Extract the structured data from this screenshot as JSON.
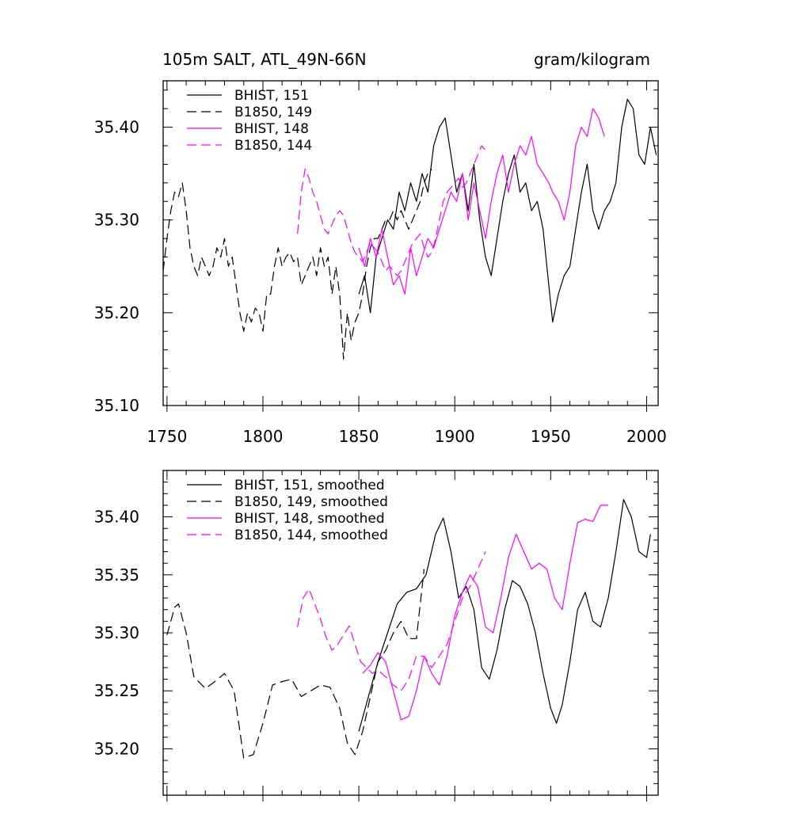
{
  "chart_data": [
    {
      "type": "line",
      "title_left": "105m SALT, ATL_49N-66N",
      "title_right": "gram/kilogram",
      "xlabel": "",
      "ylabel": "",
      "xlim": [
        1748,
        2006
      ],
      "ylim": [
        35.1,
        35.45
      ],
      "xticks": [
        1750,
        1800,
        1850,
        1900,
        1950,
        2000
      ],
      "xtick_labels": [
        "1750",
        "1800",
        "1850",
        "1900",
        "1950",
        "2000"
      ],
      "yticks": [
        35.1,
        35.2,
        35.3,
        35.4
      ],
      "ytick_labels": [
        "35.10",
        "35.20",
        "35.30",
        "35.40"
      ],
      "legend_position": "top-left",
      "series": [
        {
          "name": "BHIST, 151",
          "color": "#000000",
          "dash": "solid",
          "x": [
            1850,
            1853,
            1856,
            1859,
            1862,
            1865,
            1868,
            1871,
            1874,
            1877,
            1880,
            1883,
            1886,
            1889,
            1892,
            1895,
            1898,
            1901,
            1904,
            1907,
            1910,
            1913,
            1916,
            1919,
            1922,
            1925,
            1928,
            1931,
            1934,
            1937,
            1940,
            1943,
            1946,
            1949,
            1951,
            1954,
            1957,
            1960,
            1963,
            1966,
            1969,
            1972,
            1975,
            1978,
            1981,
            1984,
            1987,
            1990,
            1993,
            1996,
            1999,
            2002,
            2005
          ],
          "y": [
            35.22,
            35.24,
            35.2,
            35.26,
            35.28,
            35.3,
            35.29,
            35.33,
            35.31,
            35.34,
            35.32,
            35.35,
            35.33,
            35.38,
            35.4,
            35.41,
            35.37,
            35.33,
            35.35,
            35.31,
            35.36,
            35.3,
            35.26,
            35.24,
            35.28,
            35.32,
            35.35,
            35.37,
            35.33,
            35.34,
            35.31,
            35.32,
            35.29,
            35.23,
            35.19,
            35.22,
            35.24,
            35.25,
            35.29,
            35.33,
            35.36,
            35.31,
            35.29,
            35.31,
            35.32,
            35.34,
            35.4,
            35.43,
            35.42,
            35.37,
            35.36,
            35.4,
            35.37
          ]
        },
        {
          "name": "B1850, 149",
          "color": "#000000",
          "dash": "dashed",
          "x": [
            1748,
            1750,
            1752,
            1754,
            1756,
            1758,
            1760,
            1762,
            1764,
            1766,
            1768,
            1770,
            1772,
            1774,
            1776,
            1778,
            1780,
            1782,
            1784,
            1786,
            1788,
            1790,
            1792,
            1794,
            1796,
            1798,
            1800,
            1802,
            1804,
            1806,
            1808,
            1810,
            1812,
            1814,
            1816,
            1818,
            1820,
            1822,
            1824,
            1826,
            1828,
            1830,
            1832,
            1834,
            1836,
            1838,
            1840,
            1842,
            1844,
            1846,
            1848,
            1850,
            1852,
            1854,
            1856,
            1858,
            1860,
            1862,
            1864,
            1866,
            1868,
            1870,
            1872,
            1874,
            1876,
            1878,
            1880,
            1882,
            1884,
            1886,
            1888
          ],
          "y": [
            35.245,
            35.28,
            35.31,
            35.33,
            35.325,
            35.34,
            35.31,
            35.27,
            35.25,
            35.24,
            35.26,
            35.25,
            35.24,
            35.25,
            35.27,
            35.26,
            35.28,
            35.25,
            35.26,
            35.23,
            35.2,
            35.18,
            35.2,
            35.19,
            35.205,
            35.2,
            35.18,
            35.22,
            35.22,
            35.25,
            35.27,
            35.25,
            35.26,
            35.265,
            35.255,
            35.26,
            35.23,
            35.24,
            35.25,
            35.26,
            35.24,
            35.27,
            35.25,
            35.26,
            35.22,
            35.25,
            35.22,
            35.15,
            35.2,
            35.17,
            35.19,
            35.2,
            35.22,
            35.25,
            35.27,
            35.28,
            35.28,
            35.29,
            35.3,
            35.3,
            35.31,
            35.3,
            35.31,
            35.3,
            35.29,
            35.3,
            35.31,
            35.32,
            35.34,
            35.35,
            35.355
          ]
        },
        {
          "name": "BHIST, 148",
          "color": "#ff00ff",
          "dash": "solid",
          "x": [
            1850,
            1853,
            1856,
            1859,
            1862,
            1865,
            1868,
            1871,
            1874,
            1877,
            1880,
            1883,
            1886,
            1889,
            1892,
            1895,
            1898,
            1901,
            1904,
            1907,
            1910,
            1913,
            1916,
            1919,
            1922,
            1925,
            1928,
            1931,
            1934,
            1937,
            1940,
            1943,
            1946,
            1949,
            1951,
            1954,
            1957,
            1960,
            1963,
            1966,
            1969,
            1972,
            1975,
            1978
          ],
          "y": [
            35.27,
            35.25,
            35.28,
            35.26,
            35.29,
            35.26,
            35.23,
            35.24,
            35.22,
            35.27,
            35.24,
            35.26,
            35.28,
            35.27,
            35.29,
            35.31,
            35.33,
            35.32,
            35.35,
            35.3,
            35.34,
            35.31,
            35.28,
            35.32,
            35.35,
            35.37,
            35.33,
            35.36,
            35.38,
            35.37,
            35.39,
            35.36,
            35.35,
            35.34,
            35.33,
            35.32,
            35.3,
            35.33,
            35.38,
            35.4,
            35.39,
            35.42,
            35.41,
            35.39
          ]
        },
        {
          "name": "B1850, 144",
          "color": "#ff00ff",
          "dash": "dashed",
          "x": [
            1818,
            1820,
            1822,
            1824,
            1826,
            1828,
            1830,
            1832,
            1834,
            1836,
            1838,
            1840,
            1842,
            1844,
            1846,
            1848,
            1850,
            1852,
            1854,
            1856,
            1858,
            1860,
            1862,
            1864,
            1866,
            1868,
            1870,
            1872,
            1874,
            1876,
            1878,
            1880,
            1882,
            1884,
            1886,
            1888,
            1890,
            1892,
            1894,
            1896,
            1898,
            1900,
            1902,
            1904,
            1906,
            1908,
            1910,
            1912,
            1914,
            1916
          ],
          "y": [
            35.285,
            35.33,
            35.355,
            35.345,
            35.33,
            35.32,
            35.305,
            35.29,
            35.285,
            35.295,
            35.305,
            35.31,
            35.305,
            35.29,
            35.275,
            35.265,
            35.26,
            35.255,
            35.265,
            35.275,
            35.27,
            35.265,
            35.255,
            35.245,
            35.25,
            35.245,
            35.24,
            35.245,
            35.255,
            35.265,
            35.275,
            35.28,
            35.285,
            35.27,
            35.26,
            35.265,
            35.28,
            35.3,
            35.32,
            35.33,
            35.335,
            35.34,
            35.345,
            35.335,
            35.34,
            35.35,
            35.36,
            35.37,
            35.38,
            35.375
          ]
        }
      ]
    },
    {
      "type": "line",
      "xlim": [
        1748,
        2006
      ],
      "ylim": [
        35.16,
        35.44
      ],
      "xticks": [
        1750,
        1800,
        1850,
        1900,
        1950,
        2000
      ],
      "yticks": [
        35.2,
        35.25,
        35.3,
        35.35,
        35.4
      ],
      "ytick_labels": [
        "35.20",
        "35.25",
        "35.30",
        "35.35",
        "35.40"
      ],
      "legend_position": "top-left",
      "series": [
        {
          "name": "BHIST, 151, smoothed",
          "color": "#000000",
          "dash": "solid",
          "x": [
            1850,
            1855,
            1860,
            1865,
            1870,
            1875,
            1880,
            1885,
            1890,
            1894,
            1898,
            1902,
            1906,
            1910,
            1914,
            1918,
            1922,
            1926,
            1930,
            1934,
            1938,
            1942,
            1946,
            1950,
            1953,
            1956,
            1960,
            1964,
            1968,
            1972,
            1976,
            1980,
            1984,
            1988,
            1992,
            1996,
            2000,
            2002
          ],
          "y": [
            35.215,
            35.245,
            35.275,
            35.3,
            35.325,
            35.335,
            35.338,
            35.35,
            35.385,
            35.399,
            35.37,
            35.33,
            35.34,
            35.32,
            35.27,
            35.26,
            35.285,
            35.32,
            35.345,
            35.34,
            35.325,
            35.3,
            35.265,
            35.235,
            35.222,
            35.238,
            35.275,
            35.32,
            35.335,
            35.31,
            35.305,
            35.33,
            35.37,
            35.415,
            35.4,
            35.37,
            35.365,
            35.385
          ]
        },
        {
          "name": "B1850, 149, smoothed",
          "color": "#000000",
          "dash": "dashed",
          "x": [
            1750,
            1754,
            1756,
            1760,
            1764,
            1770,
            1775,
            1780,
            1785,
            1790,
            1795,
            1800,
            1805,
            1810,
            1815,
            1820,
            1825,
            1830,
            1835,
            1840,
            1844,
            1848,
            1852,
            1856,
            1860,
            1864,
            1868,
            1872,
            1876,
            1880,
            1884
          ],
          "y": [
            35.298,
            35.322,
            35.325,
            35.3,
            35.262,
            35.252,
            35.258,
            35.265,
            35.25,
            35.192,
            35.195,
            35.222,
            35.255,
            35.258,
            35.26,
            35.245,
            35.25,
            35.255,
            35.253,
            35.235,
            35.205,
            35.195,
            35.215,
            35.245,
            35.275,
            35.285,
            35.3,
            35.31,
            35.295,
            35.295,
            35.355
          ]
        },
        {
          "name": "BHIST, 148, smoothed",
          "color": "#ff00ff",
          "dash": "solid",
          "x": [
            1852,
            1856,
            1860,
            1864,
            1868,
            1872,
            1876,
            1880,
            1884,
            1888,
            1892,
            1896,
            1900,
            1904,
            1908,
            1912,
            1916,
            1920,
            1924,
            1928,
            1932,
            1936,
            1940,
            1944,
            1948,
            1952,
            1956,
            1960,
            1964,
            1968,
            1972,
            1976,
            1980
          ],
          "y": [
            35.265,
            35.272,
            35.283,
            35.275,
            35.25,
            35.225,
            35.228,
            35.25,
            35.28,
            35.265,
            35.255,
            35.28,
            35.315,
            35.335,
            35.35,
            35.34,
            35.305,
            35.3,
            35.33,
            35.365,
            35.385,
            35.37,
            35.355,
            35.36,
            35.355,
            35.33,
            35.32,
            35.36,
            35.395,
            35.398,
            35.396,
            35.41,
            35.41
          ]
        },
        {
          "name": "B1850, 144, smoothed",
          "color": "#ff00ff",
          "dash": "dashed",
          "x": [
            1818,
            1821,
            1824,
            1827,
            1830,
            1833,
            1836,
            1839,
            1842,
            1845,
            1848,
            1851,
            1854,
            1857,
            1860,
            1864,
            1868,
            1872,
            1876,
            1880,
            1884,
            1888,
            1892,
            1896,
            1900,
            1904,
            1908,
            1912,
            1916
          ],
          "y": [
            35.305,
            35.33,
            35.338,
            35.325,
            35.312,
            35.296,
            35.285,
            35.29,
            35.298,
            35.306,
            35.29,
            35.275,
            35.27,
            35.265,
            35.268,
            35.262,
            35.255,
            35.25,
            35.26,
            35.28,
            35.28,
            35.27,
            35.28,
            35.29,
            35.31,
            35.33,
            35.34,
            35.355,
            35.37
          ]
        }
      ]
    }
  ]
}
